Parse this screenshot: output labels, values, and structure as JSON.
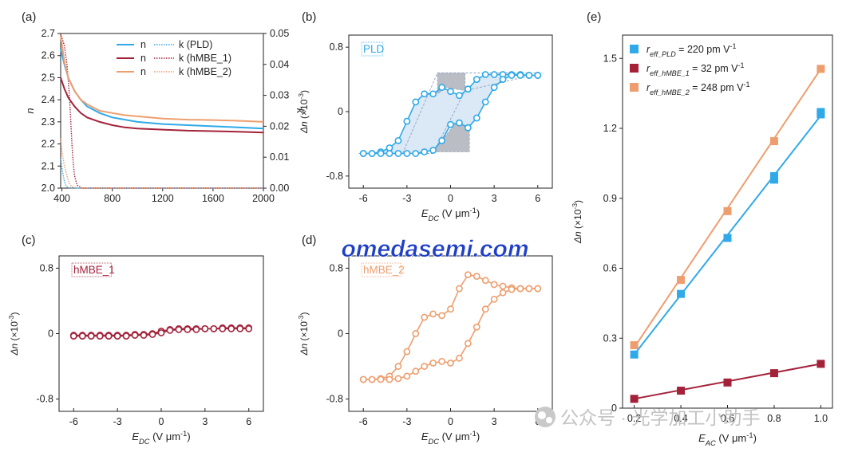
{
  "colors": {
    "pld": "#30a9e8",
    "pld_fill": "#dbe8f6",
    "pld_dark": "#a9adb6",
    "hmbe1": "#a3223a",
    "hmbe2": "#ee9e6e",
    "axis": "#222222",
    "watermark": "#1f3fc6"
  },
  "watermark": "omedasemi.com",
  "wechat": "公众号 · 光学加工小助手",
  "chart_data": [
    {
      "id": "a",
      "panel_label": "(a)",
      "type": "line",
      "xlabel": "",
      "ylabel": "n",
      "y2label": "k",
      "xlim": [
        390,
        2000
      ],
      "ylim": [
        2.0,
        2.7
      ],
      "y2lim": [
        0,
        0.05
      ],
      "xticks": [
        400,
        800,
        1200,
        1600,
        2000
      ],
      "yticks": [
        2.0,
        2.1,
        2.2,
        2.3,
        2.4,
        2.5,
        2.6,
        2.7
      ],
      "ytick_labels": [
        "2.0",
        "2.1",
        "2.2",
        "2.3",
        "2.4",
        "2.5",
        "2.6",
        "2.7"
      ],
      "y2ticks": [
        0,
        0.01,
        0.02,
        0.03,
        0.04,
        0.05
      ],
      "y2tick_labels": [
        "0.00",
        "0.01",
        "0.02",
        "0.03",
        "0.04",
        "0.05"
      ],
      "legend": [
        {
          "n_label": "n",
          "k_label": "k (PLD)",
          "color": "#30a9e8"
        },
        {
          "n_label": "n",
          "k_label": "k (hMBE_1)",
          "color": "#a3223a"
        },
        {
          "n_label": "n",
          "k_label": "k (hMBE_2)",
          "color": "#ee9e6e"
        }
      ],
      "n_series": [
        {
          "color": "#30a9e8",
          "x": [
            390,
            420,
            450,
            500,
            550,
            600,
            700,
            800,
            900,
            1000,
            1200,
            1400,
            1600,
            1800,
            2000
          ],
          "y": [
            2.63,
            2.56,
            2.5,
            2.44,
            2.4,
            2.37,
            2.34,
            2.32,
            2.31,
            2.3,
            2.29,
            2.285,
            2.28,
            2.275,
            2.27
          ]
        },
        {
          "color": "#a3223a",
          "x": [
            390,
            420,
            450,
            500,
            550,
            600,
            700,
            800,
            900,
            1000,
            1200,
            1400,
            1600,
            1800,
            2000
          ],
          "y": [
            2.5,
            2.45,
            2.41,
            2.37,
            2.34,
            2.32,
            2.3,
            2.285,
            2.275,
            2.27,
            2.265,
            2.26,
            2.258,
            2.255,
            2.252
          ]
        },
        {
          "color": "#ee9e6e",
          "x": [
            390,
            420,
            450,
            500,
            550,
            600,
            700,
            800,
            900,
            1000,
            1200,
            1400,
            1600,
            1800,
            2000
          ],
          "y": [
            2.69,
            2.57,
            2.5,
            2.44,
            2.4,
            2.38,
            2.35,
            2.34,
            2.33,
            2.325,
            2.315,
            2.31,
            2.308,
            2.305,
            2.3
          ]
        }
      ],
      "k_series": [
        {
          "color": "#30a9e8",
          "x": [
            390,
            400,
            410,
            420,
            430,
            440,
            460,
            500,
            2000
          ],
          "y": [
            0.0095,
            0.0065,
            0.004,
            0.0022,
            0.001,
            0.0004,
            0.0001,
            0,
            0
          ]
        },
        {
          "color": "#a3223a",
          "x": [
            390,
            420,
            440,
            460,
            470,
            480,
            490,
            500,
            520,
            560,
            2000
          ],
          "y": [
            0.05,
            0.046,
            0.04,
            0.03,
            0.022,
            0.014,
            0.008,
            0.004,
            0.001,
            0,
            0
          ]
        },
        {
          "color": "#ee9e6e",
          "x": [
            390,
            400,
            420,
            440,
            460,
            480,
            520,
            2000
          ],
          "y": [
            0.016,
            0.012,
            0.007,
            0.004,
            0.0015,
            0.0004,
            0,
            0
          ]
        }
      ]
    },
    {
      "id": "b",
      "panel_label": "(b)",
      "type": "scatter",
      "tag": "PLD",
      "xlabel_main": "E",
      "xlabel_sub": "DC",
      "xlabel_unit": " (V μm",
      "xlabel_exp": "-1",
      "xlabel_close": ")",
      "ylabel_main": "Δn",
      "ylabel_unit": "(×10",
      "ylabel_exp": "-3",
      "ylabel_close": ")",
      "xlim": [
        -7,
        7
      ],
      "ylim": [
        -0.95,
        0.95
      ],
      "xticks": [
        -6,
        -3,
        0,
        3,
        6
      ],
      "xtick_labels": [
        "-6",
        "-3",
        "0",
        "3",
        "6"
      ],
      "yticks": [
        -0.8,
        0,
        0.8
      ],
      "ytick_labels": [
        "-0.8",
        "0",
        "0.8"
      ],
      "color": "#30a9e8",
      "upper": {
        "x": [
          -6,
          -5.4,
          -4.8,
          -4.2,
          -3.6,
          -3.0,
          -2.4,
          -1.8,
          -1.2,
          -0.6,
          0,
          0.6,
          1.2,
          1.8,
          2.4,
          3.0,
          3.6,
          4.2,
          4.8,
          5.4,
          6
        ],
        "y": [
          -0.52,
          -0.52,
          -0.5,
          -0.45,
          -0.36,
          -0.12,
          0.12,
          0.22,
          0.22,
          0.3,
          0.25,
          0.2,
          0.28,
          0.4,
          0.46,
          0.46,
          0.46,
          0.46,
          0.46,
          0.45,
          0.45
        ]
      },
      "lower": {
        "x": [
          -6,
          -5.4,
          -4.8,
          -4.2,
          -3.6,
          -3.0,
          -2.4,
          -1.8,
          -1.2,
          -0.6,
          0,
          0.6,
          1.2,
          1.8,
          2.4,
          3.0,
          3.6,
          4.2,
          4.8,
          5.4,
          6
        ],
        "y": [
          -0.52,
          -0.52,
          -0.52,
          -0.52,
          -0.52,
          -0.52,
          -0.52,
          -0.5,
          -0.48,
          -0.36,
          -0.16,
          -0.14,
          -0.2,
          -0.08,
          0.12,
          0.3,
          0.4,
          0.45,
          0.45,
          0.45,
          0.45
        ]
      }
    },
    {
      "id": "c",
      "panel_label": "(c)",
      "type": "scatter",
      "tag": "hMBE_1",
      "xlabel_main": "E",
      "xlabel_sub": "DC",
      "xlabel_unit": " (V μm",
      "xlabel_exp": "-1",
      "xlabel_close": ")",
      "ylabel_main": "Δn",
      "ylabel_unit": "(×10",
      "ylabel_exp": "-3",
      "ylabel_close": ")",
      "xlim": [
        -7,
        7
      ],
      "ylim": [
        -0.95,
        0.95
      ],
      "xticks": [
        -6,
        -3,
        0,
        3,
        6
      ],
      "xtick_labels": [
        "-6",
        "-3",
        "0",
        "3",
        "6"
      ],
      "yticks": [
        -0.8,
        0,
        0.8
      ],
      "ytick_labels": [
        "-0.8",
        "0",
        "0.8"
      ],
      "color": "#a3223a",
      "upper": {
        "x": [
          -6,
          -5.4,
          -4.8,
          -4.2,
          -3.6,
          -3.0,
          -2.4,
          -1.8,
          -1.2,
          -0.6,
          0,
          0.6,
          1.2,
          1.8,
          2.4,
          3.0,
          3.6,
          4.2,
          4.8,
          5.4,
          6
        ],
        "y": [
          -0.02,
          -0.02,
          -0.02,
          -0.02,
          -0.02,
          -0.02,
          -0.02,
          -0.01,
          -0.01,
          0.0,
          0.03,
          0.05,
          0.06,
          0.06,
          0.06,
          0.06,
          0.06,
          0.07,
          0.07,
          0.07,
          0.07
        ]
      },
      "lower": {
        "x": [
          -6,
          -5.4,
          -4.8,
          -4.2,
          -3.6,
          -3.0,
          -2.4,
          -1.8,
          -1.2,
          -0.6,
          0,
          0.6,
          1.2,
          1.8,
          2.4,
          3.0,
          3.6,
          4.2,
          4.8,
          5.4,
          6
        ],
        "y": [
          -0.03,
          -0.03,
          -0.03,
          -0.03,
          -0.03,
          -0.03,
          -0.03,
          -0.02,
          -0.02,
          -0.01,
          0.01,
          0.04,
          0.05,
          0.05,
          0.05,
          0.06,
          0.06,
          0.06,
          0.06,
          0.06,
          0.06
        ]
      }
    },
    {
      "id": "d",
      "panel_label": "(d)",
      "type": "scatter",
      "tag": "hMBE_2",
      "xlabel_main": "E",
      "xlabel_sub": "DC",
      "xlabel_unit": " (V μm",
      "xlabel_exp": "-1",
      "xlabel_close": ")",
      "ylabel_main": "Δn",
      "ylabel_unit": "(×10",
      "ylabel_exp": "-3",
      "ylabel_close": ")",
      "xlim": [
        -7,
        7
      ],
      "ylim": [
        -0.95,
        0.95
      ],
      "xticks": [
        -6,
        -3,
        0,
        3,
        6
      ],
      "xtick_labels": [
        "-6",
        "-3",
        "0",
        "3",
        "6"
      ],
      "yticks": [
        -0.8,
        0,
        0.8
      ],
      "ytick_labels": [
        "-0.8",
        "0",
        "0.8"
      ],
      "color": "#ee9e6e",
      "upper": {
        "x": [
          -6,
          -5.4,
          -4.8,
          -4.2,
          -3.6,
          -3.0,
          -2.4,
          -1.8,
          -1.2,
          -0.6,
          0,
          0.6,
          1.2,
          1.8,
          2.4,
          3.0,
          3.6,
          4.2,
          4.8,
          5.4,
          6
        ],
        "y": [
          -0.56,
          -0.56,
          -0.55,
          -0.52,
          -0.4,
          -0.22,
          0.0,
          0.2,
          0.24,
          0.22,
          0.3,
          0.55,
          0.72,
          0.7,
          0.65,
          0.6,
          0.58,
          0.56,
          0.55,
          0.55,
          0.55
        ]
      },
      "lower": {
        "x": [
          -6,
          -5.4,
          -4.8,
          -4.2,
          -3.6,
          -3.0,
          -2.4,
          -1.8,
          -1.2,
          -0.6,
          0,
          0.6,
          1.2,
          1.8,
          2.4,
          3.0,
          3.6,
          4.2,
          4.8,
          5.4,
          6
        ],
        "y": [
          -0.56,
          -0.56,
          -0.56,
          -0.56,
          -0.55,
          -0.52,
          -0.46,
          -0.4,
          -0.36,
          -0.34,
          -0.36,
          -0.3,
          -0.12,
          0.08,
          0.3,
          0.42,
          0.5,
          0.54,
          0.55,
          0.55,
          0.55
        ]
      }
    },
    {
      "id": "e",
      "panel_label": "(e)",
      "type": "scatter",
      "xlabel_main": "E",
      "xlabel_sub": "AC",
      "xlabel_unit": " (V μm",
      "xlabel_exp": "-1",
      "xlabel_close": ")",
      "ylabel_main": "Δn",
      "ylabel_unit": "(×10",
      "ylabel_exp": "-3",
      "ylabel_close": ")",
      "xlim": [
        0.15,
        1.05
      ],
      "ylim": [
        0,
        1.6
      ],
      "xticks": [
        0.2,
        0.4,
        0.6,
        0.8,
        1.0
      ],
      "xtick_labels": [
        "0.2",
        "0.4",
        "0.6",
        "0.8",
        "1.0"
      ],
      "yticks": [
        0,
        0.3,
        0.6,
        0.9,
        1.2,
        1.5
      ],
      "ytick_labels": [
        "0",
        "0.3",
        "0.6",
        "0.9",
        "1.2",
        "1.5"
      ],
      "series": [
        {
          "legend_r": "r",
          "legend_sub": "eff_PLD",
          "legend_value": " = 220 pm V",
          "legend_exp": "-1",
          "color": "#30a9e8",
          "x": [
            0.2,
            0.4,
            0.6,
            0.8,
            1.0
          ],
          "y": [
            0.23,
            0.49,
            0.73,
            0.98,
            1.26
          ],
          "x2": [
            0.8,
            1.0
          ],
          "y2": [
            0.995,
            1.27
          ],
          "fit": [
            [
              0.2,
              0.23
            ],
            [
              1.0,
              1.255
            ]
          ]
        },
        {
          "legend_r": "r",
          "legend_sub": "eff_hMBE_1",
          "legend_value": " = 32 pm V",
          "legend_exp": "-1",
          "color": "#a3223a",
          "x": [
            0.2,
            0.4,
            0.6,
            0.8,
            1.0
          ],
          "y": [
            0.04,
            0.075,
            0.11,
            0.15,
            0.19
          ],
          "fit": [
            [
              0.2,
              0.04
            ],
            [
              1.0,
              0.19
            ]
          ]
        },
        {
          "legend_r": "r",
          "legend_sub": "eff_hMBE_2",
          "legend_value": " = 248 pm V",
          "legend_exp": "-1",
          "color": "#ee9e6e",
          "x": [
            0.2,
            0.4,
            0.6,
            0.8,
            1.0
          ],
          "y": [
            0.27,
            0.55,
            0.845,
            1.145,
            1.455
          ],
          "fit": [
            [
              0.2,
              0.26
            ],
            [
              1.0,
              1.455
            ]
          ]
        }
      ]
    }
  ]
}
